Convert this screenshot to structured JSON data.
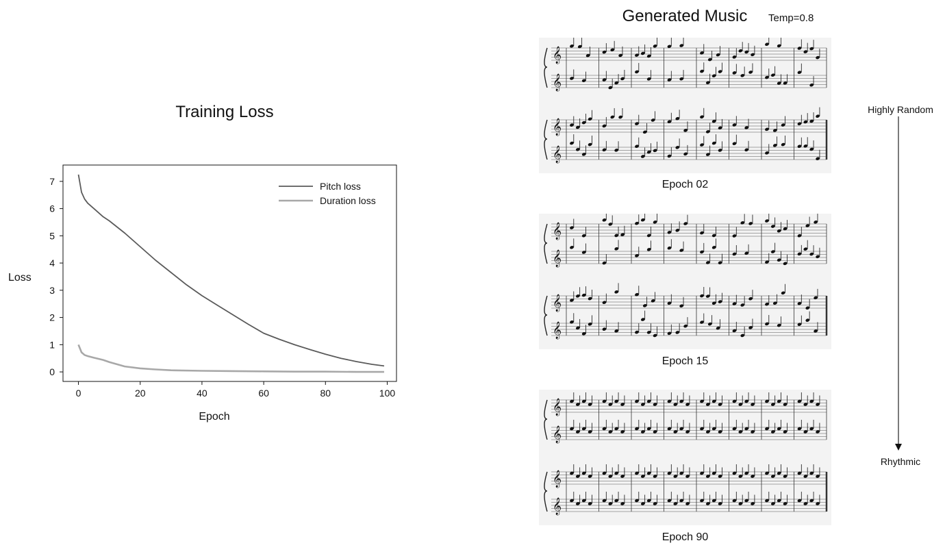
{
  "loss_panel": {
    "chart_data": {
      "type": "line",
      "title": "Training Loss",
      "xlabel": "Epoch",
      "ylabel": "Loss",
      "xlim": [
        -5,
        103
      ],
      "ylim": [
        -0.35,
        7.6
      ],
      "x_ticks": [
        0,
        20,
        40,
        60,
        80,
        100
      ],
      "y_ticks": [
        0,
        1,
        2,
        3,
        4,
        5,
        6,
        7
      ],
      "legend_position": "top-right",
      "grid": false,
      "series": [
        {
          "name": "Pitch loss",
          "color": "#5a5a5a",
          "x": [
            0,
            1,
            2,
            3,
            5,
            8,
            10,
            15,
            20,
            25,
            30,
            35,
            40,
            45,
            50,
            55,
            60,
            65,
            70,
            75,
            80,
            85,
            90,
            95,
            99
          ],
          "y": [
            7.25,
            6.6,
            6.35,
            6.2,
            6.0,
            5.7,
            5.55,
            5.1,
            4.6,
            4.1,
            3.65,
            3.2,
            2.8,
            2.45,
            2.1,
            1.75,
            1.42,
            1.2,
            1.0,
            0.82,
            0.65,
            0.5,
            0.38,
            0.28,
            0.22
          ]
        },
        {
          "name": "Duration loss",
          "color": "#a8a8a8",
          "x": [
            0,
            1,
            2,
            3,
            5,
            8,
            10,
            15,
            20,
            25,
            30,
            40,
            50,
            60,
            70,
            80,
            90,
            99
          ],
          "y": [
            1.0,
            0.72,
            0.62,
            0.58,
            0.52,
            0.44,
            0.36,
            0.2,
            0.13,
            0.09,
            0.06,
            0.04,
            0.03,
            0.02,
            0.01,
            0.01,
            0.0,
            0.0
          ]
        }
      ]
    }
  },
  "music_panel": {
    "title": "Generated Music",
    "temperature_label": "Temp=0.8",
    "samples": [
      {
        "label": "Epoch 02"
      },
      {
        "label": "Epoch 15"
      },
      {
        "label": "Epoch 90"
      }
    ],
    "progression": {
      "start_label": "Highly Random",
      "end_label": "Rhythmic"
    }
  }
}
